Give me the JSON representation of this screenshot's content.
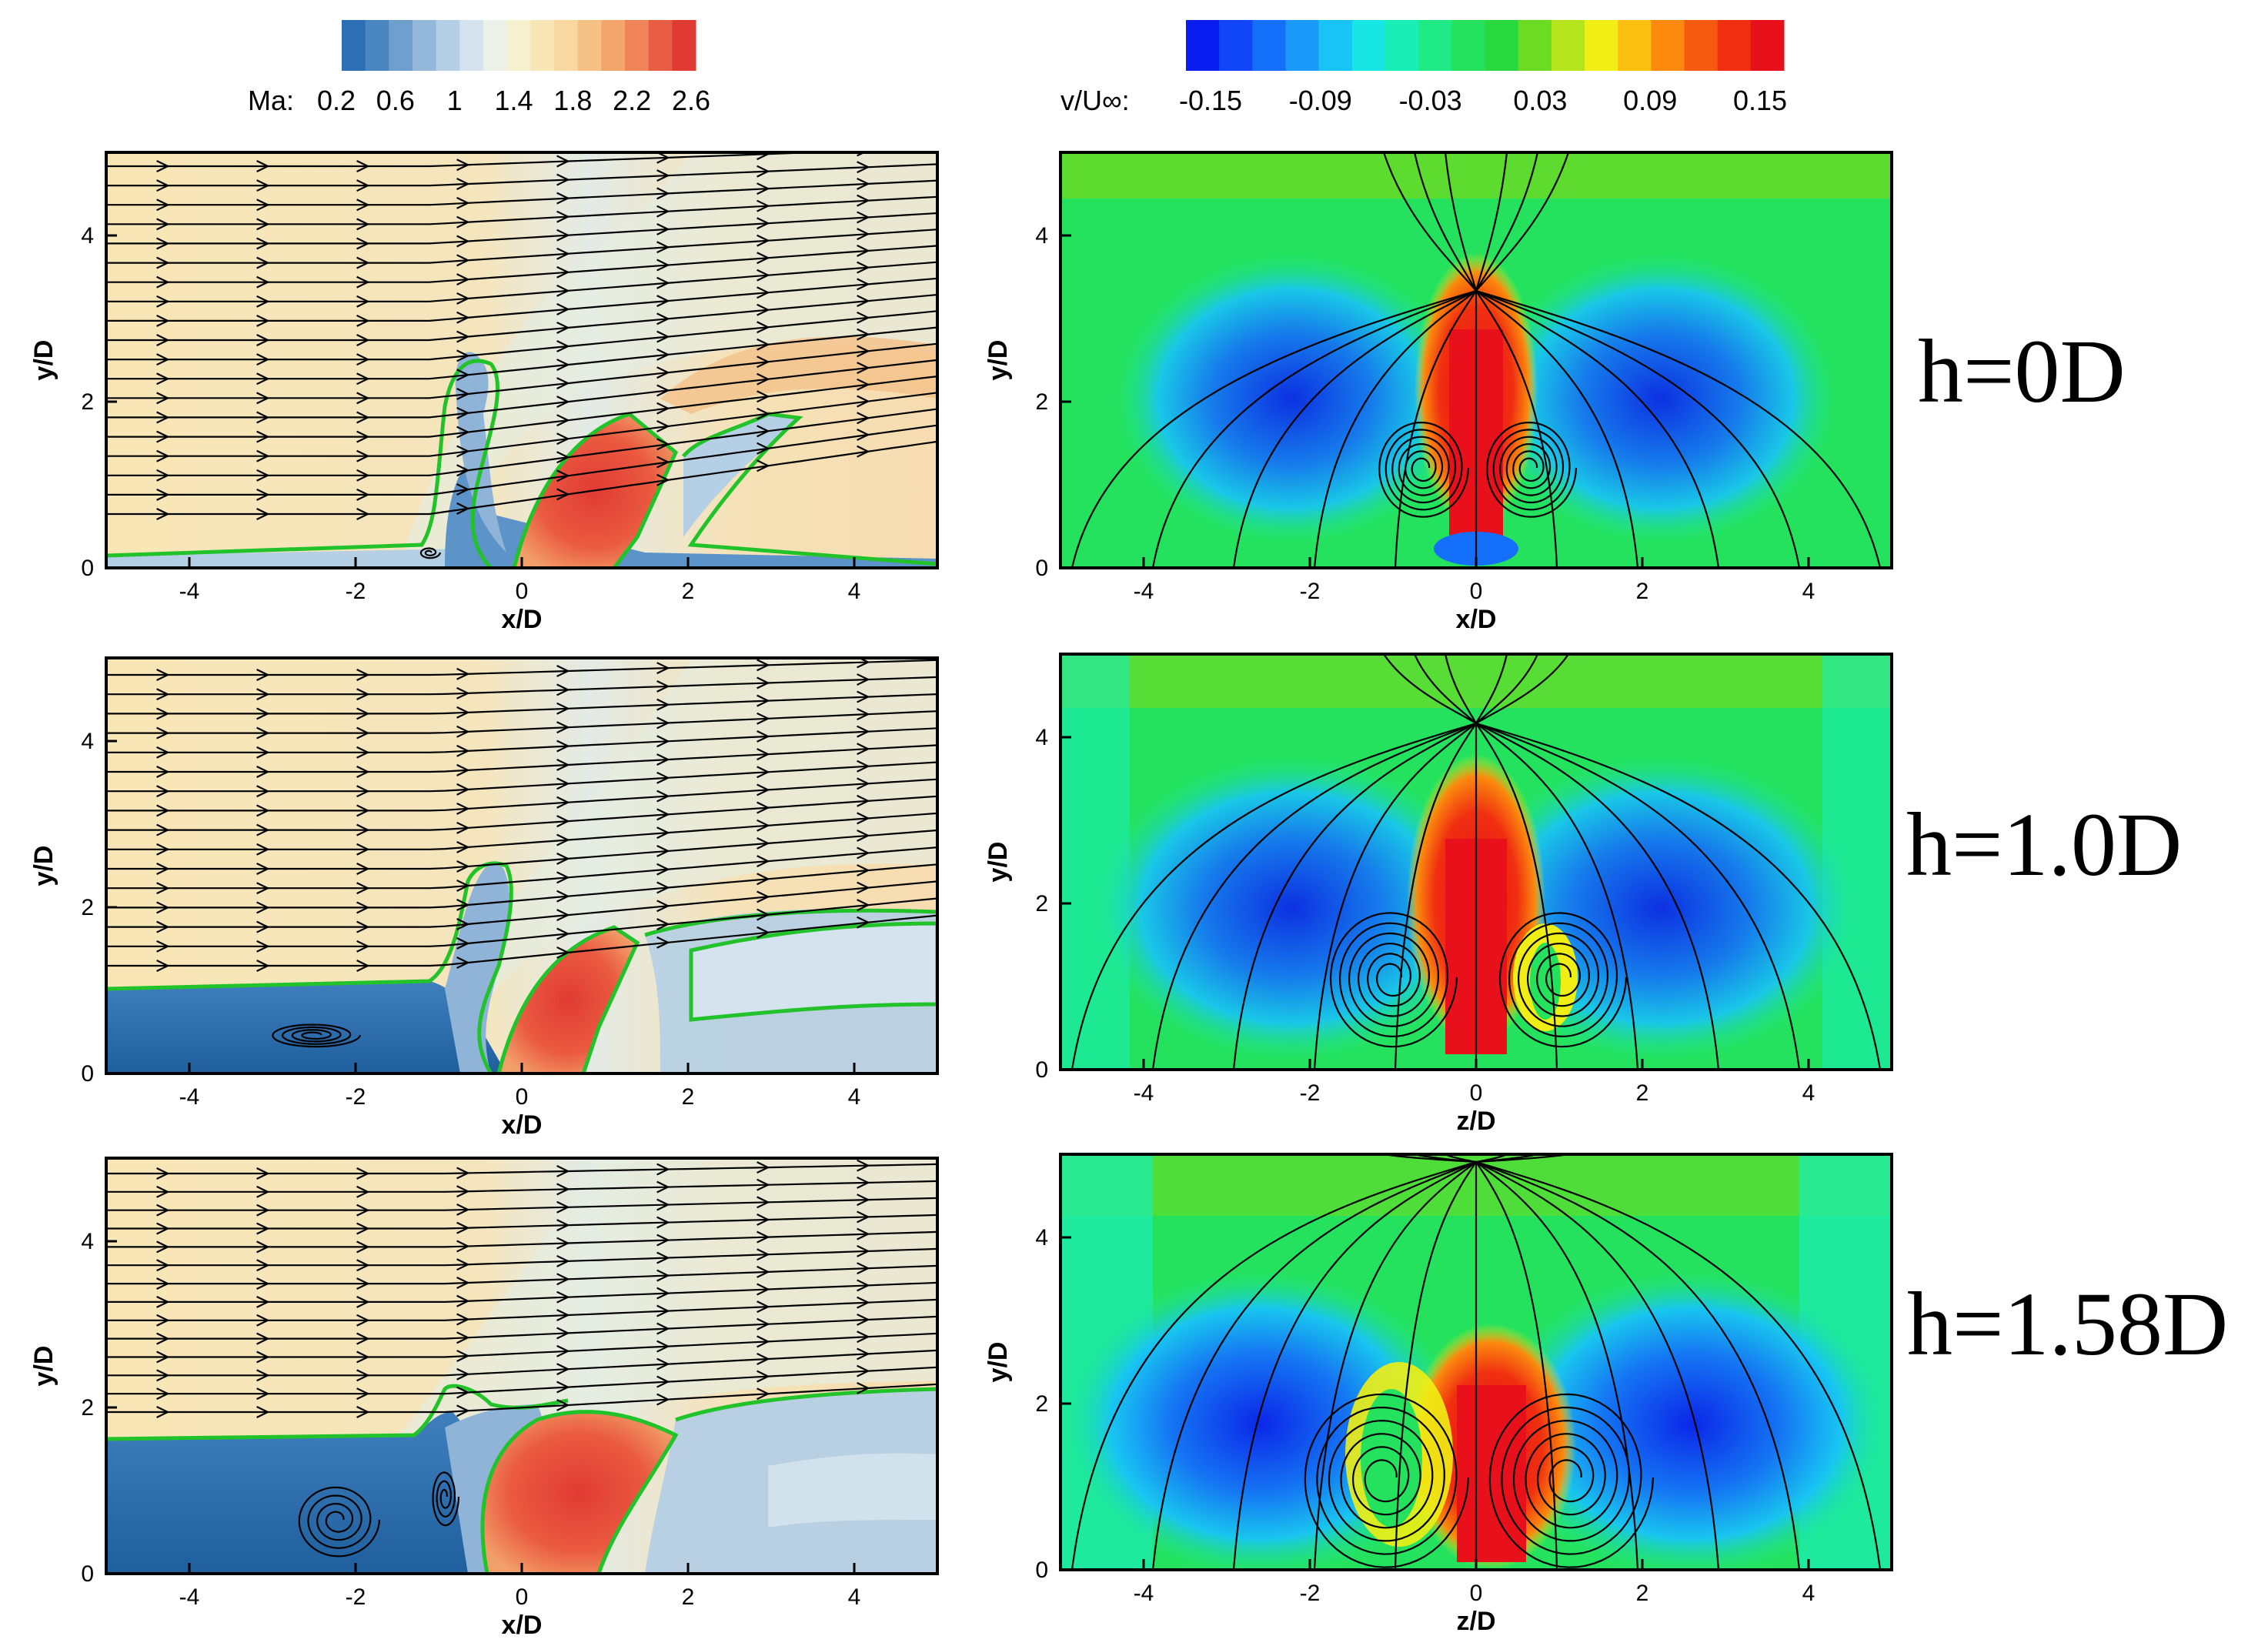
{
  "colorbars": {
    "mach": {
      "label": "Ma:",
      "ticks": [
        "0.2",
        "0.6",
        "1",
        "1.4",
        "1.8",
        "2.2",
        "2.6"
      ],
      "colors": [
        "#2c6fb4",
        "#4a87c1",
        "#6e9fcd",
        "#93b8da",
        "#b5cfe5",
        "#d4e3ee",
        "#ecf1e8",
        "#f6f0cf",
        "#f8e6b6",
        "#f8d7a0",
        "#f6c184",
        "#f3a56c",
        "#ee8458",
        "#e75e45",
        "#e03b33"
      ]
    },
    "vvel": {
      "label": "v/U∞:",
      "ticks": [
        "-0.15",
        "-0.09",
        "-0.03",
        "0.03",
        "0.09",
        "0.15"
      ],
      "colors": [
        "#0a1df0",
        "#1046f8",
        "#1470fb",
        "#1a9bfb",
        "#18c4f6",
        "#17e6e4",
        "#19eeb6",
        "#20ea86",
        "#25e25e",
        "#27d93f",
        "#6cdb23",
        "#b6e41c",
        "#f0ee14",
        "#fbbf10",
        "#fb8a0e",
        "#f65a0e",
        "#f02f10",
        "#e8101a"
      ]
    }
  },
  "panels": [
    {
      "id": "mach-h0",
      "xlabel": "x/D",
      "ylabel": "y/D",
      "xticks": [
        "-4",
        "-2",
        "0",
        "2",
        "4"
      ],
      "yticks": [
        "0",
        "2",
        "4"
      ]
    },
    {
      "id": "vvel-h0",
      "xlabel": "x/D",
      "ylabel": "y/D",
      "xticks": [
        "-4",
        "-2",
        "0",
        "2",
        "4"
      ],
      "yticks": [
        "0",
        "2",
        "4"
      ]
    },
    {
      "id": "mach-h1",
      "xlabel": "x/D",
      "ylabel": "y/D",
      "xticks": [
        "-4",
        "-2",
        "0",
        "2",
        "4"
      ],
      "yticks": [
        "0",
        "2",
        "4"
      ]
    },
    {
      "id": "vvel-h1",
      "xlabel": "z/D",
      "ylabel": "y/D",
      "xticks": [
        "-4",
        "-2",
        "0",
        "2",
        "4"
      ],
      "yticks": [
        "0",
        "2",
        "4"
      ]
    },
    {
      "id": "mach-h158",
      "xlabel": "x/D",
      "ylabel": "y/D",
      "xticks": [
        "-4",
        "-2",
        "0",
        "2",
        "4"
      ],
      "yticks": [
        "0",
        "2",
        "4"
      ]
    },
    {
      "id": "vvel-h158",
      "xlabel": "z/D",
      "ylabel": "y/D",
      "xticks": [
        "-4",
        "-2",
        "0",
        "2",
        "4"
      ],
      "yticks": [
        "0",
        "2",
        "4"
      ]
    }
  ],
  "cases": [
    "h=0D",
    "h=1.0D",
    "h=1.58D"
  ]
}
